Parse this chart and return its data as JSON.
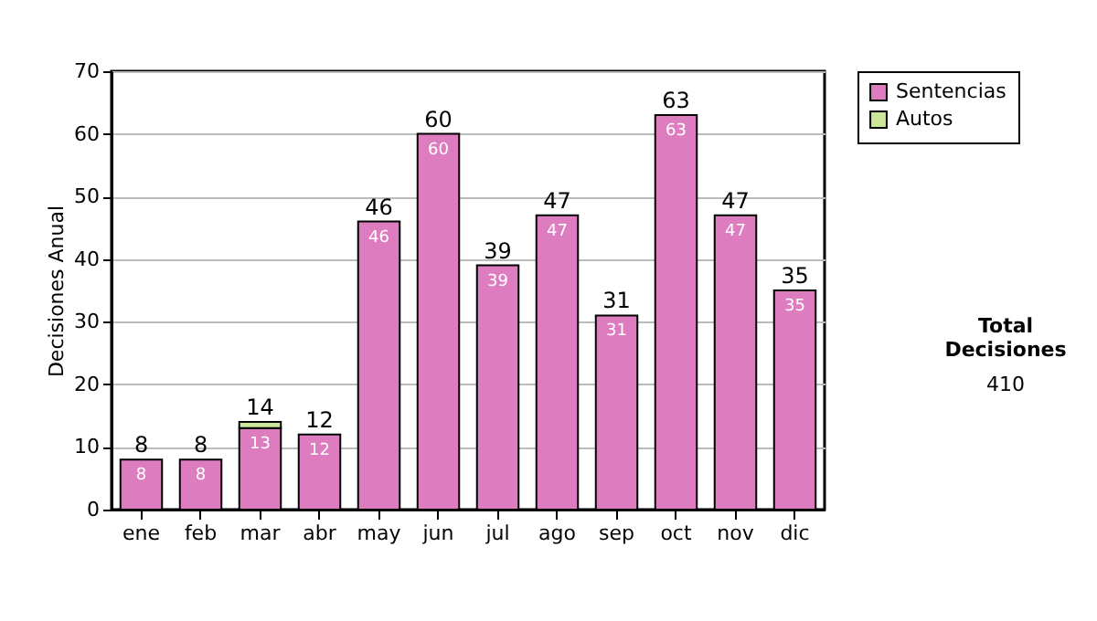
{
  "chart_data": {
    "type": "bar",
    "stacked": true,
    "ylabel": "Decisiones Anual",
    "categories": [
      "ene",
      "feb",
      "mar",
      "abr",
      "may",
      "jun",
      "jul",
      "ago",
      "sep",
      "oct",
      "nov",
      "dic"
    ],
    "series": [
      {
        "name": "Sentencias",
        "color": "#dd7dc0",
        "values": [
          8,
          8,
          13,
          12,
          46,
          60,
          39,
          47,
          31,
          63,
          47,
          35
        ],
        "value_labels": [
          "8",
          "8",
          "13",
          "12",
          "46",
          "60",
          "39",
          "47",
          "31",
          "63",
          "47",
          "35"
        ]
      },
      {
        "name": "Autos",
        "color": "#cce69a",
        "values": [
          0,
          0,
          1,
          0,
          0,
          0,
          0,
          0,
          0,
          0,
          0,
          0
        ]
      }
    ],
    "totals": [
      "8",
      "8",
      "14",
      "12",
      "46",
      "60",
      "39",
      "47",
      "31",
      "63",
      "47",
      "35"
    ],
    "ylim": [
      0,
      70
    ],
    "yticks": [
      0,
      10,
      20,
      30,
      40,
      50,
      60,
      70
    ],
    "grid": "y",
    "legend": "right",
    "annotations": [
      "Total Decisiones",
      "410"
    ]
  }
}
